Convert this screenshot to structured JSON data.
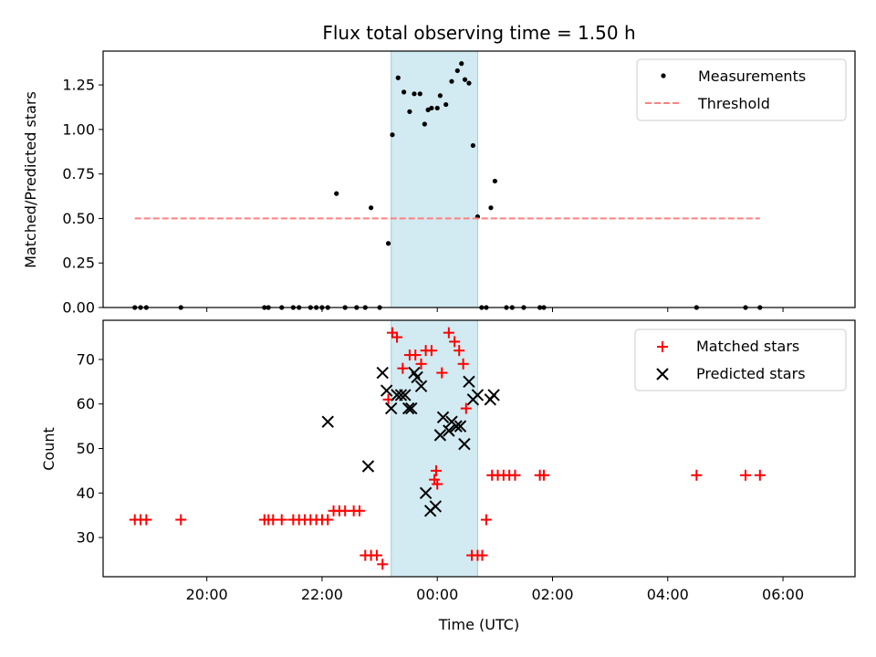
{
  "chart_data": [
    {
      "id": "top",
      "type": "scatter",
      "title": "Flux total observing time = 1.50 h",
      "ylabel": "Matched/Predicted stars",
      "xlabel": "",
      "xlim": [
        18.2,
        31.25
      ],
      "ylim": [
        0,
        1.44
      ],
      "xticks": [
        20,
        22,
        24,
        26,
        28,
        30
      ],
      "yticks": [
        0.0,
        0.25,
        0.5,
        0.75,
        1.0,
        1.25
      ],
      "ytick_labels": [
        "0.00",
        "0.25",
        "0.50",
        "0.75",
        "1.00",
        "1.25"
      ],
      "shaded_span": [
        23.2,
        24.7
      ],
      "legend": {
        "location": "upper right",
        "entries": [
          "Measurements",
          "Threshold"
        ]
      },
      "series": [
        {
          "name": "Measurements",
          "marker": "dot",
          "color": "#000000",
          "x": [
            18.75,
            18.85,
            18.95,
            19.55,
            21.0,
            21.07,
            21.3,
            21.5,
            21.6,
            21.8,
            21.9,
            22.0,
            22.1,
            22.25,
            22.4,
            22.6,
            22.75,
            22.85,
            23.0,
            23.15,
            23.22,
            23.32,
            23.42,
            23.52,
            23.6,
            23.7,
            23.78,
            23.84,
            23.9,
            24.0,
            24.05,
            24.15,
            24.25,
            24.35,
            24.42,
            24.48,
            24.55,
            24.62,
            24.7,
            24.77,
            24.85,
            24.93,
            25.0,
            25.2,
            25.3,
            25.5,
            25.78,
            25.85,
            28.5,
            29.35,
            29.6
          ],
          "y": [
            0.0,
            0.0,
            0.0,
            0.0,
            0.0,
            0.0,
            0.0,
            0.0,
            0.0,
            0.0,
            0.0,
            0.0,
            0.0,
            0.64,
            0.0,
            0.0,
            0.0,
            0.56,
            0.0,
            0.36,
            0.97,
            1.29,
            1.21,
            1.1,
            1.2,
            1.2,
            1.03,
            1.11,
            1.12,
            1.12,
            1.19,
            1.14,
            1.27,
            1.33,
            1.37,
            1.28,
            1.26,
            0.91,
            0.51,
            0.0,
            0.0,
            0.56,
            0.71,
            0.0,
            0.0,
            0.0,
            0.0,
            0.0,
            0.0,
            0.0,
            0.0
          ]
        },
        {
          "name": "Threshold",
          "type": "hline",
          "style": "dashed",
          "color": "#ff8080",
          "x": [
            18.75,
            29.6
          ],
          "y": 0.5
        }
      ]
    },
    {
      "id": "bottom",
      "type": "scatter",
      "title": "",
      "ylabel": "Count",
      "xlabel": "Time (UTC)",
      "xlim": [
        18.2,
        31.25
      ],
      "ylim": [
        21.2,
        78.8
      ],
      "xticks": [
        20,
        22,
        24,
        26,
        28,
        30
      ],
      "xtick_labels": [
        "20:00",
        "22:00",
        "00:00",
        "02:00",
        "04:00",
        "06:00"
      ],
      "yticks": [
        30,
        40,
        50,
        60,
        70
      ],
      "ytick_labels": [
        "30",
        "40",
        "50",
        "60",
        "70"
      ],
      "shaded_span": [
        23.2,
        24.7
      ],
      "legend": {
        "location": "upper right",
        "entries": [
          "Matched stars",
          "Predicted stars"
        ]
      },
      "series": [
        {
          "name": "Matched stars",
          "marker": "plus",
          "color": "#ff0000",
          "x": [
            18.75,
            18.85,
            18.95,
            19.55,
            21.0,
            21.07,
            21.15,
            21.3,
            21.5,
            21.6,
            21.7,
            21.8,
            21.9,
            22.0,
            22.1,
            22.2,
            22.3,
            22.4,
            22.55,
            22.65,
            22.75,
            22.85,
            22.95,
            23.05,
            23.15,
            23.22,
            23.3,
            23.4,
            23.52,
            23.62,
            23.72,
            23.8,
            23.9,
            23.98,
            23.95,
            24.0,
            24.08,
            24.2,
            24.3,
            24.38,
            24.45,
            24.5,
            24.6,
            24.7,
            24.78,
            24.85,
            24.95,
            25.05,
            25.15,
            25.25,
            25.35,
            25.78,
            25.85,
            28.5,
            29.35,
            29.6
          ],
          "y": [
            34,
            34,
            34,
            34,
            34,
            34,
            34,
            34,
            34,
            34,
            34,
            34,
            34,
            34,
            34,
            36,
            36,
            36,
            36,
            36,
            26,
            26,
            26,
            24,
            61,
            76,
            75,
            68,
            71,
            71,
            69,
            72,
            72,
            45,
            43,
            42,
            67,
            76,
            74,
            72,
            69,
            59,
            26,
            26,
            26,
            34,
            44,
            44,
            44,
            44,
            44,
            44,
            44,
            44,
            44,
            44
          ]
        },
        {
          "name": "Predicted stars",
          "marker": "x",
          "color": "#000000",
          "x": [
            22.1,
            22.8,
            23.05,
            23.12,
            23.2,
            23.3,
            23.37,
            23.44,
            23.5,
            23.55,
            23.6,
            23.65,
            23.72,
            23.8,
            23.88,
            23.97,
            24.05,
            24.1,
            24.2,
            24.25,
            24.33,
            24.4,
            24.47,
            24.55,
            24.62,
            24.7,
            24.92,
            24.98
          ],
          "y": [
            56,
            46,
            67,
            63,
            59,
            62,
            62,
            62,
            59,
            59,
            67,
            66,
            64,
            40,
            36,
            37,
            53,
            57,
            54,
            56,
            55,
            55,
            51,
            65,
            61,
            62,
            61,
            62
          ]
        }
      ]
    }
  ]
}
